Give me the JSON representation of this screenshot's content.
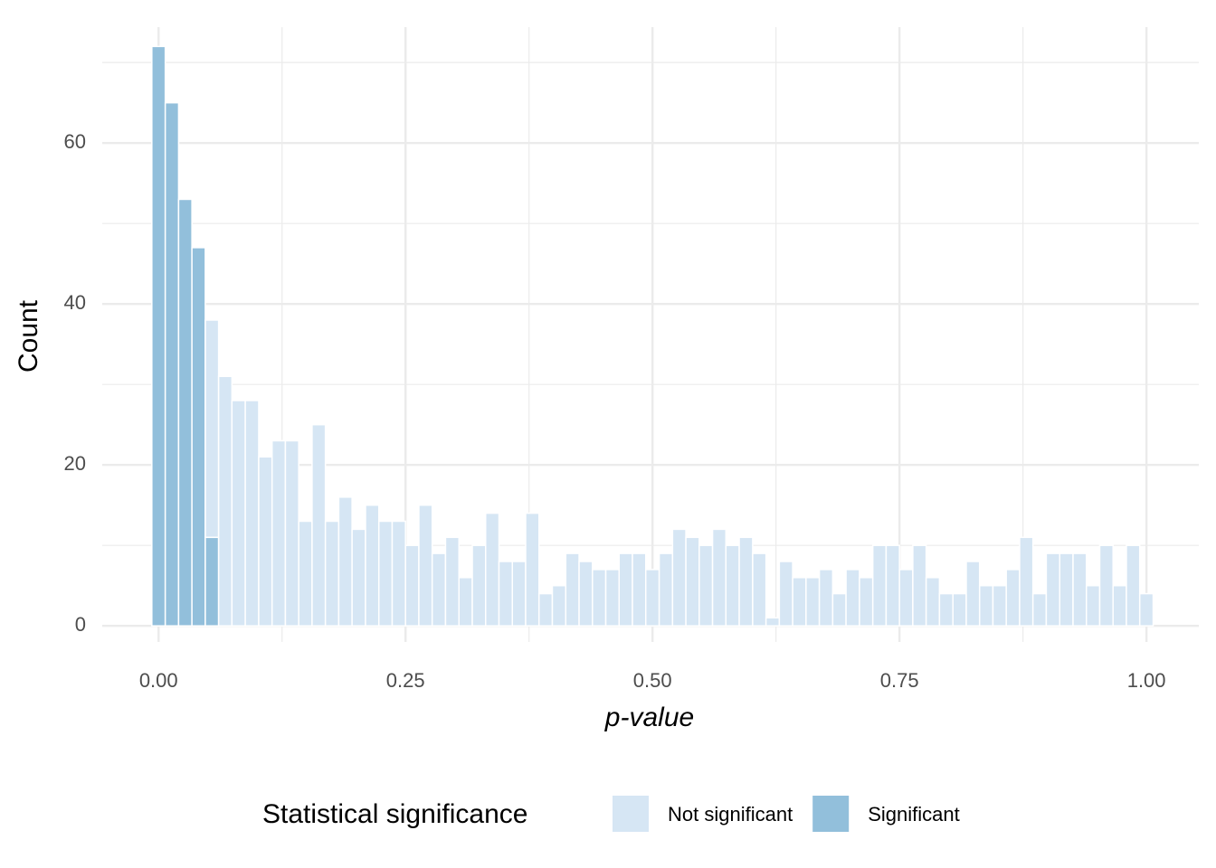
{
  "chart_data": {
    "type": "histogram",
    "stacked": true,
    "x_label": "p-value",
    "y_label": "Count",
    "legend_title": "Statistical significance",
    "legend_position": "bottom",
    "bins": [
      -0.0068,
      0.0068,
      0.0203,
      0.0338,
      0.0473,
      0.0608,
      0.0743,
      0.0878,
      0.1014,
      0.1149,
      0.1284,
      0.1419,
      0.1554,
      0.1689,
      0.1824,
      0.1959,
      0.2095,
      0.223,
      0.2365,
      0.25,
      0.2635,
      0.277,
      0.2905,
      0.3041,
      0.3176,
      0.3311,
      0.3446,
      0.3581,
      0.3716,
      0.3851,
      0.3986,
      0.4122,
      0.4257,
      0.4392,
      0.4527,
      0.4662,
      0.4797,
      0.4932,
      0.5068,
      0.5203,
      0.5338,
      0.5473,
      0.5608,
      0.5743,
      0.5878,
      0.6014,
      0.6149,
      0.6284,
      0.6419,
      0.6554,
      0.6689,
      0.6824,
      0.6959,
      0.7095,
      0.723,
      0.7365,
      0.75,
      0.7635,
      0.777,
      0.7905,
      0.8041,
      0.8176,
      0.8311,
      0.8446,
      0.8581,
      0.8716,
      0.8851,
      0.8986,
      0.9122,
      0.9257,
      0.9392,
      0.9527,
      0.9662,
      0.9797,
      0.9932,
      1.0068
    ],
    "series": [
      {
        "name": "Not significant",
        "color": "#d6e6f4",
        "values": [
          0,
          0,
          0,
          0,
          27,
          31,
          28,
          28,
          21,
          23,
          23,
          13,
          25,
          13,
          16,
          12,
          15,
          13,
          13,
          10,
          15,
          9,
          11,
          6,
          10,
          14,
          8,
          8,
          14,
          4,
          5,
          9,
          8,
          7,
          7,
          9,
          9,
          7,
          9,
          12,
          11,
          10,
          12,
          10,
          11,
          9,
          1,
          8,
          6,
          6,
          7,
          4,
          7,
          6,
          10,
          10,
          7,
          10,
          6,
          4,
          4,
          8,
          5,
          5,
          7,
          11,
          4,
          9,
          9,
          9,
          5,
          10,
          5,
          10,
          4
        ]
      },
      {
        "name": "Significant",
        "color": "#92bfdb",
        "values": [
          72,
          65,
          53,
          47,
          11,
          0,
          0,
          0,
          0,
          0,
          0,
          0,
          0,
          0,
          0,
          0,
          0,
          0,
          0,
          0,
          0,
          0,
          0,
          0,
          0,
          0,
          0,
          0,
          0,
          0,
          0,
          0,
          0,
          0,
          0,
          0,
          0,
          0,
          0,
          0,
          0,
          0,
          0,
          0,
          0,
          0,
          0,
          0,
          0,
          0,
          0,
          0,
          0,
          0,
          0,
          0,
          0,
          0,
          0,
          0,
          0,
          0,
          0,
          0,
          0,
          0,
          0,
          0,
          0,
          0,
          0,
          0,
          0,
          0,
          0
        ]
      }
    ],
    "xlim": [
      -0.057,
      1.053
    ],
    "ylim": [
      -2,
      74.4
    ],
    "xticks": [
      {
        "value": 0,
        "label": "0.00"
      },
      0.25,
      {
        "value": 0.5,
        "label": "0.50"
      },
      0.75,
      {
        "value": 1,
        "label": "1.00"
      }
    ],
    "yticks": [
      0,
      20,
      40,
      60
    ],
    "minor_xticks": [
      0.125,
      0.375,
      0.625,
      0.875
    ],
    "minor_yticks": [
      10,
      30,
      50,
      70
    ],
    "grid": true
  }
}
